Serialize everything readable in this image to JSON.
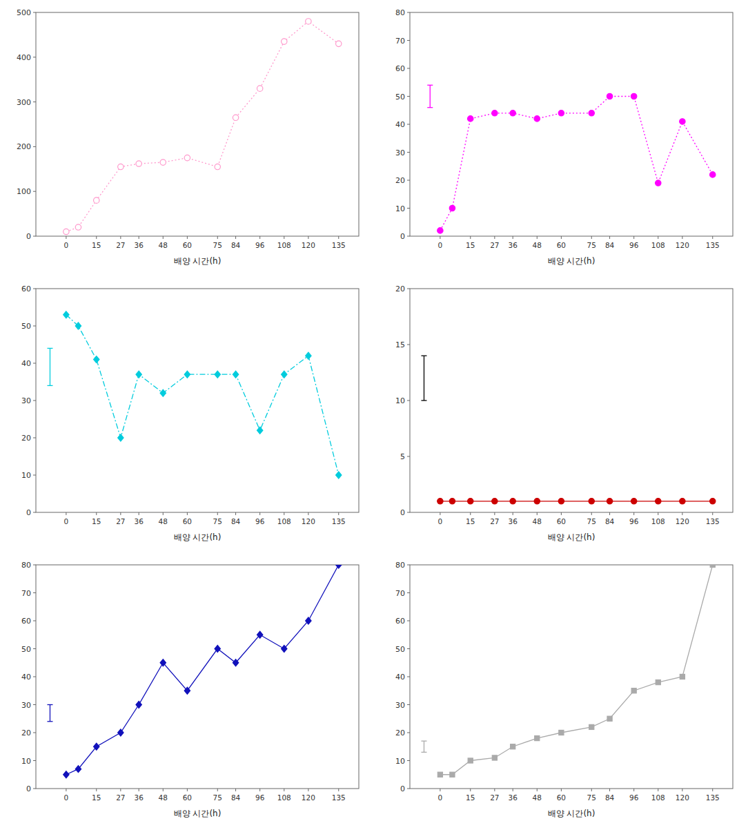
{
  "chart_data": [
    {
      "type": "line",
      "x_label": "배양 시간(h)",
      "x": [
        0,
        6,
        15,
        27,
        36,
        48,
        60,
        75,
        84,
        96,
        108,
        120,
        135
      ],
      "xlim": [
        -15,
        145
      ],
      "xticks": [
        0,
        15,
        27,
        36,
        48,
        60,
        75,
        84,
        96,
        108,
        120,
        135
      ],
      "ylim": [
        0,
        500
      ],
      "yticks": [
        0,
        100,
        200,
        300,
        400,
        500
      ],
      "grid": false,
      "series": [
        {
          "color": "#FF99CC",
          "marker": "open-circle",
          "line_style": "dotted",
          "values": [
            10,
            20,
            80,
            155,
            162,
            165,
            175,
            155,
            265,
            330,
            435,
            480,
            430
          ]
        }
      ]
    },
    {
      "type": "line",
      "x_label": "배양 시간(h)",
      "x": [
        0,
        6,
        15,
        27,
        36,
        48,
        60,
        75,
        84,
        96,
        108,
        120,
        135
      ],
      "xlim": [
        -15,
        145
      ],
      "xticks": [
        0,
        15,
        27,
        36,
        48,
        60,
        75,
        84,
        96,
        108,
        120,
        135
      ],
      "ylim": [
        0,
        80
      ],
      "yticks": [
        0,
        10,
        20,
        30,
        40,
        50,
        60,
        70,
        80
      ],
      "grid": false,
      "series": [
        {
          "color": "#FF00FF",
          "marker": "circle",
          "line_style": "dotted",
          "values": [
            2,
            10,
            42,
            44,
            44,
            42,
            44,
            44,
            50,
            50,
            19,
            41,
            22
          ]
        }
      ],
      "error_bar": {
        "x": -5,
        "y": 50,
        "error": 4,
        "color": "#FF00FF"
      }
    },
    {
      "type": "line",
      "x_label": "배양 시간(h)",
      "x": [
        0,
        6,
        15,
        27,
        36,
        48,
        60,
        75,
        84,
        96,
        108,
        120,
        135
      ],
      "xlim": [
        -15,
        145
      ],
      "xticks": [
        0,
        15,
        27,
        36,
        48,
        60,
        75,
        84,
        96,
        108,
        120,
        135
      ],
      "ylim": [
        0,
        60
      ],
      "yticks": [
        0,
        10,
        20,
        30,
        40,
        50,
        60
      ],
      "grid": false,
      "series": [
        {
          "color": "#00CCDD",
          "marker": "diamond",
          "line_style": "dashdot",
          "values": [
            53,
            50,
            41,
            20,
            37,
            32,
            37,
            37,
            37,
            22,
            37,
            42,
            10
          ]
        }
      ],
      "error_bar": {
        "x": -8,
        "y": 39,
        "error": 5,
        "color": "#00CCDD"
      }
    },
    {
      "type": "line",
      "x_label": "배양 시간(h)",
      "x": [
        0,
        6,
        15,
        27,
        36,
        48,
        60,
        75,
        84,
        96,
        108,
        120,
        135
      ],
      "xlim": [
        -15,
        145
      ],
      "xticks": [
        0,
        15,
        27,
        36,
        48,
        60,
        75,
        84,
        96,
        108,
        120,
        135
      ],
      "ylim": [
        0,
        20
      ],
      "yticks": [
        0,
        5,
        10,
        15,
        20
      ],
      "grid": false,
      "series": [
        {
          "color": "#CC0000",
          "marker": "circle",
          "line_style": "solid",
          "values": [
            1,
            1,
            1,
            1,
            1,
            1,
            1,
            1,
            1,
            1,
            1,
            1,
            1
          ]
        }
      ],
      "error_bar": {
        "x": -8,
        "y": 12,
        "error": 2,
        "color": "#000000"
      }
    },
    {
      "type": "line",
      "x_label": "배양 시간(h)",
      "x": [
        0,
        6,
        15,
        27,
        36,
        48,
        60,
        75,
        84,
        96,
        108,
        120,
        135
      ],
      "xlim": [
        -15,
        145
      ],
      "xticks": [
        0,
        15,
        27,
        36,
        48,
        60,
        75,
        84,
        96,
        108,
        120,
        135
      ],
      "ylim": [
        0,
        80
      ],
      "yticks": [
        0,
        10,
        20,
        30,
        40,
        50,
        60,
        70,
        80
      ],
      "grid": false,
      "series": [
        {
          "color": "#1111BB",
          "marker": "diamond",
          "line_style": "solid",
          "values": [
            5,
            7,
            15,
            20,
            30,
            45,
            35,
            50,
            45,
            55,
            50,
            60,
            80
          ]
        }
      ],
      "error_bar": {
        "x": -8,
        "y": 27,
        "error": 3,
        "color": "#1111BB"
      }
    },
    {
      "type": "line",
      "x_label": "배양 시간(h)",
      "x": [
        0,
        6,
        15,
        27,
        36,
        48,
        60,
        75,
        84,
        96,
        108,
        120,
        135
      ],
      "xlim": [
        -15,
        145
      ],
      "xticks": [
        0,
        15,
        27,
        36,
        48,
        60,
        75,
        84,
        96,
        108,
        120,
        135
      ],
      "ylim": [
        0,
        80
      ],
      "yticks": [
        0,
        10,
        20,
        30,
        40,
        50,
        60,
        70,
        80
      ],
      "grid": false,
      "series": [
        {
          "color": "#AAAAAA",
          "marker": "square",
          "line_style": "solid",
          "values": [
            5,
            5,
            10,
            11,
            15,
            18,
            20,
            22,
            25,
            35,
            38,
            40,
            80
          ]
        }
      ],
      "error_bar": {
        "x": -8,
        "y": 15,
        "error": 2,
        "color": "#AAAAAA"
      }
    }
  ]
}
